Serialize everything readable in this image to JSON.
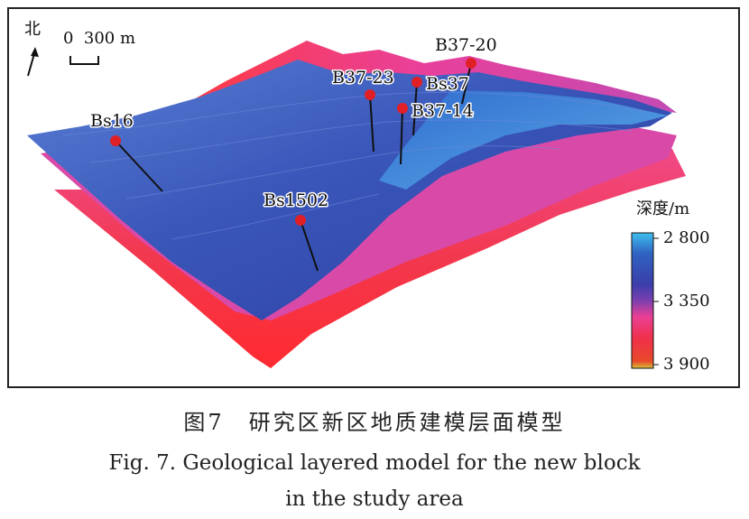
{
  "figure": {
    "north_label": "北",
    "scale_bar": {
      "text": "0  300 m"
    },
    "legend": {
      "title": "深度/m",
      "ticks": [
        "2 800",
        "3 350",
        "3 900"
      ],
      "colors": [
        "#3fc0ef",
        "#2f63c2",
        "#3b3eaa",
        "#7b3fb0",
        "#e93f94",
        "#f0304a",
        "#e84a2a",
        "#d6c23a"
      ]
    },
    "wells": [
      {
        "name": "B37-20"
      },
      {
        "name": "B37-23"
      },
      {
        "name": "Bs37"
      },
      {
        "name": "B37-14"
      },
      {
        "name": "Bs16"
      },
      {
        "name": "Bs1502"
      }
    ],
    "well_marker_color": "#e01f26"
  },
  "caption": {
    "cn": "图7　研究区新区地质建模层面模型",
    "en_line1": "Fig. 7. Geological layered model for the new block",
    "en_line2": "in the study area"
  }
}
